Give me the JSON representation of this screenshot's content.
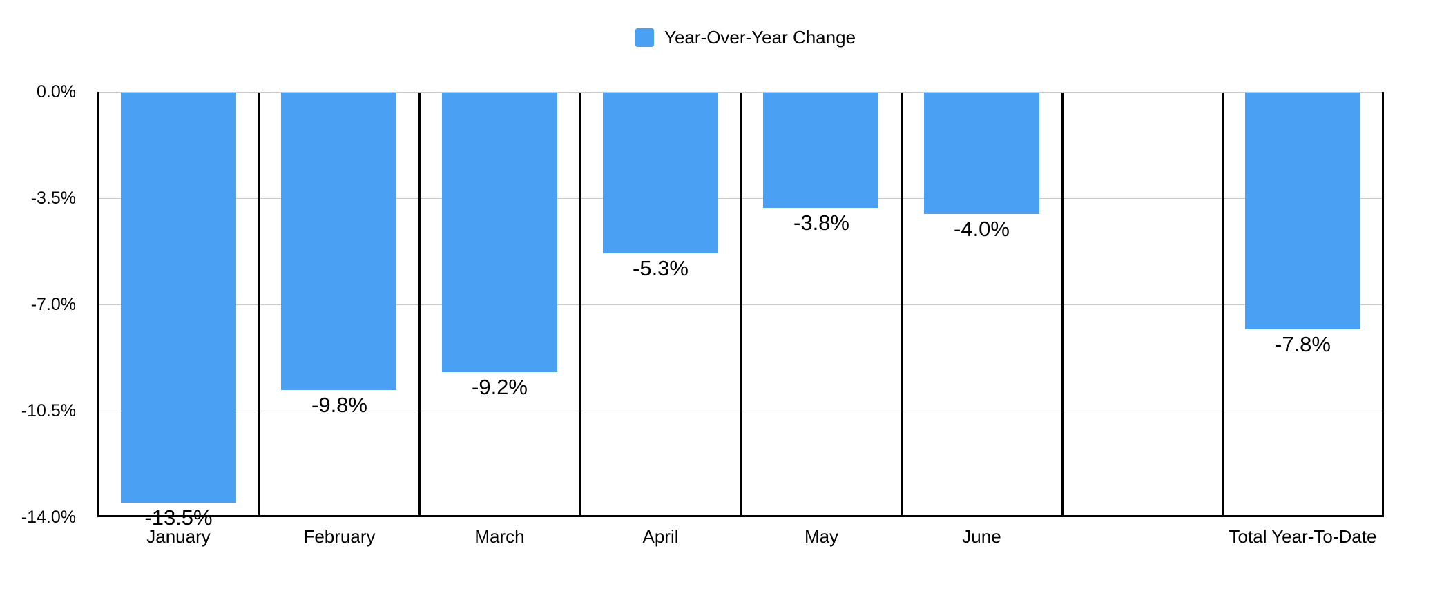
{
  "chart_data": {
    "type": "bar",
    "title": "",
    "legend": "Year-Over-Year Change",
    "legend_position": "top-center",
    "categories": [
      "January",
      "February",
      "March",
      "April",
      "May",
      "June",
      "",
      "Total Year-To-Date"
    ],
    "series": [
      {
        "name": "Year-Over-Year Change",
        "values": [
          -13.5,
          -9.8,
          -9.2,
          -5.3,
          -3.8,
          -4.0,
          null,
          -7.8
        ]
      }
    ],
    "value_labels": [
      "-13.5%",
      "-9.8%",
      "-9.2%",
      "-5.3%",
      "-3.8%",
      "-4.0%",
      "",
      "-7.8%"
    ],
    "y_ticks": [
      "0.0%",
      "-3.5%",
      "-7.0%",
      "-10.5%",
      "-14.0%"
    ],
    "y_tick_values": [
      0,
      -3.5,
      -7.0,
      -10.5,
      -14.0
    ],
    "ylim": [
      0,
      -14
    ],
    "xlabel": "",
    "ylabel": "",
    "grid": true,
    "bar_color": "#4AA0F2",
    "gridline_color": "#c9c9c9",
    "axis_color": "#000000",
    "text_color": "#000000",
    "background_color": "#ffffff"
  }
}
